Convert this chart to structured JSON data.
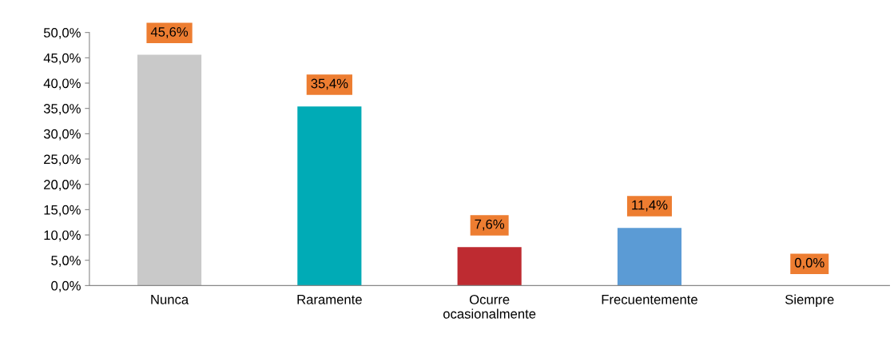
{
  "chart_data": {
    "type": "bar",
    "categories": [
      "Nunca",
      "Raramente",
      "Ocurre\nocasionalmente",
      "Frecuentemente",
      "Siempre"
    ],
    "values": [
      45.6,
      35.4,
      7.6,
      11.4,
      0.0
    ],
    "colors": [
      "#c9c9c9",
      "#00abb6",
      "#be2b31",
      "#5b9bd5",
      "#5b9bd5"
    ],
    "value_labels": [
      "45,6%",
      "35,4%",
      "7,6%",
      "11,4%",
      "0,0%"
    ],
    "ylim": [
      0,
      50
    ],
    "yticks": [
      {
        "value": 0,
        "label": "0,0%"
      },
      {
        "value": 5,
        "label": "5,0%"
      },
      {
        "value": 10,
        "label": "10,0%"
      },
      {
        "value": 15,
        "label": "15,0%"
      },
      {
        "value": 20,
        "label": "20,0%"
      },
      {
        "value": 25,
        "label": "25,0%"
      },
      {
        "value": 30,
        "label": "30,0%"
      },
      {
        "value": 35,
        "label": "35,0%"
      },
      {
        "value": 40,
        "label": "40,0%"
      },
      {
        "value": 45,
        "label": "45,0%"
      },
      {
        "value": 50,
        "label": "50,0%"
      }
    ],
    "grid": false,
    "legend": false
  }
}
